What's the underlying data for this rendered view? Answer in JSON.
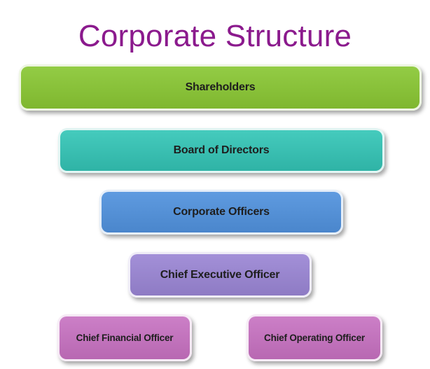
{
  "title": "Corporate Structure",
  "levels": {
    "shareholders": "Shareholders",
    "board": "Board of Directors",
    "officers": "Corporate Officers",
    "ceo": "Chief Executive Officer",
    "cfo": "Chief Financial Officer",
    "coo": "Chief Operating Officer"
  },
  "colors": {
    "title": "#8b1a8d",
    "shareholders": "#7fb72f",
    "board": "#2fb3a6",
    "officers": "#4a86cc",
    "ceo": "#8e7bc4",
    "cfo": "#b868b2",
    "coo": "#b868b2"
  }
}
